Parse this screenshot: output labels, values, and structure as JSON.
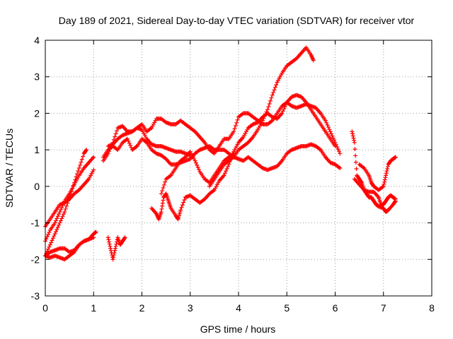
{
  "chart_data": {
    "type": "scatter",
    "title": "Day 189 of 2021, Sidereal Day-to-day VTEC variation (SDTVAR) for receiver vtor",
    "xlabel": "GPS time / hours",
    "ylabel": "SDTVAR / TECUs",
    "xlim": [
      0,
      8
    ],
    "ylim": [
      -3,
      4
    ],
    "xticks": [
      "0",
      "1",
      "2",
      "3",
      "4",
      "5",
      "6",
      "7",
      "8"
    ],
    "yticks": [
      "-3",
      "-2",
      "-1",
      "0",
      "1",
      "2",
      "3",
      "4"
    ],
    "grid": true,
    "legend": "none",
    "marker": "+",
    "color": "#ff0000",
    "series": [
      {
        "points": [
          [
            0.0,
            -1.1
          ],
          [
            0.1,
            -0.9
          ],
          [
            0.2,
            -0.7
          ],
          [
            0.3,
            -0.5
          ],
          [
            0.4,
            -0.45
          ],
          [
            0.5,
            -0.35
          ],
          [
            0.6,
            -0.2
          ],
          [
            0.7,
            -0.1
          ],
          [
            0.8,
            0.05
          ],
          [
            0.9,
            0.2
          ],
          [
            1.0,
            0.45
          ]
        ]
      },
      {
        "points": [
          [
            0.0,
            -1.9
          ],
          [
            0.1,
            -1.6
          ],
          [
            0.2,
            -1.3
          ],
          [
            0.3,
            -1.0
          ],
          [
            0.4,
            -0.7
          ],
          [
            0.5,
            -0.3
          ],
          [
            0.6,
            0.1
          ],
          [
            0.7,
            0.5
          ],
          [
            0.8,
            0.9
          ],
          [
            0.85,
            1.0
          ]
        ]
      },
      {
        "points": [
          [
            0.0,
            -1.5
          ],
          [
            0.1,
            -1.2
          ],
          [
            0.2,
            -1.0
          ],
          [
            0.3,
            -0.7
          ],
          [
            0.4,
            -0.4
          ],
          [
            0.5,
            -0.2
          ],
          [
            0.6,
            0.05
          ],
          [
            0.7,
            0.3
          ],
          [
            0.8,
            0.5
          ],
          [
            0.9,
            0.65
          ],
          [
            1.0,
            0.8
          ]
        ]
      },
      {
        "points": [
          [
            0.0,
            -1.9
          ],
          [
            0.1,
            -1.8
          ],
          [
            0.2,
            -1.75
          ],
          [
            0.3,
            -1.7
          ],
          [
            0.4,
            -1.7
          ],
          [
            0.5,
            -1.8
          ],
          [
            0.6,
            -1.75
          ],
          [
            0.7,
            -1.6
          ],
          [
            0.8,
            -1.5
          ],
          [
            0.9,
            -1.45
          ],
          [
            1.0,
            -1.3
          ],
          [
            1.05,
            -1.25
          ]
        ]
      },
      {
        "points": [
          [
            0.0,
            -1.9
          ],
          [
            0.1,
            -1.95
          ],
          [
            0.2,
            -1.9
          ],
          [
            0.3,
            -1.95
          ],
          [
            0.4,
            -2.0
          ],
          [
            0.5,
            -1.9
          ],
          [
            0.6,
            -1.8
          ],
          [
            0.7,
            -1.6
          ],
          [
            0.8,
            -1.5
          ],
          [
            0.9,
            -1.45
          ],
          [
            1.0,
            -1.4
          ]
        ]
      },
      {
        "points": [
          [
            1.2,
            0.7
          ],
          [
            1.3,
            0.9
          ],
          [
            1.4,
            1.2
          ],
          [
            1.5,
            1.6
          ],
          [
            1.6,
            1.65
          ],
          [
            1.7,
            1.5
          ],
          [
            1.8,
            1.5
          ],
          [
            1.9,
            1.6
          ],
          [
            2.0,
            1.7
          ],
          [
            2.1,
            1.5
          ],
          [
            2.2,
            1.6
          ],
          [
            2.3,
            1.85
          ],
          [
            2.4,
            1.85
          ],
          [
            2.5,
            1.75
          ],
          [
            2.6,
            1.7
          ],
          [
            2.7,
            1.7
          ],
          [
            2.8,
            1.8
          ],
          [
            2.9,
            1.7
          ],
          [
            3.0,
            1.6
          ],
          [
            3.1,
            1.5
          ],
          [
            3.2,
            1.35
          ],
          [
            3.3,
            1.2
          ],
          [
            3.4,
            1.0
          ],
          [
            3.5,
            0.9
          ],
          [
            3.6,
            1.1
          ],
          [
            3.7,
            1.3
          ],
          [
            3.8,
            1.3
          ],
          [
            3.9,
            1.5
          ],
          [
            4.0,
            1.9
          ],
          [
            4.1,
            2.0
          ],
          [
            4.2,
            2.0
          ],
          [
            4.3,
            1.9
          ],
          [
            4.4,
            1.8
          ],
          [
            4.5,
            1.7
          ],
          [
            4.6,
            1.7
          ],
          [
            4.7,
            1.8
          ],
          [
            4.8,
            2.0
          ],
          [
            4.9,
            2.2
          ],
          [
            5.0,
            2.3
          ],
          [
            5.1,
            2.2
          ],
          [
            5.2,
            2.15
          ],
          [
            5.3,
            2.2
          ],
          [
            5.4,
            2.25
          ],
          [
            5.5,
            2.2
          ],
          [
            5.6,
            2.15
          ],
          [
            5.7,
            2.0
          ],
          [
            5.8,
            1.8
          ],
          [
            5.9,
            1.5
          ],
          [
            6.0,
            1.2
          ],
          [
            6.1,
            0.9
          ]
        ]
      },
      {
        "points": [
          [
            1.2,
            0.8
          ],
          [
            1.3,
            1.0
          ],
          [
            1.4,
            1.1
          ],
          [
            1.5,
            1.0
          ],
          [
            1.6,
            1.2
          ],
          [
            1.7,
            1.3
          ],
          [
            1.8,
            1.0
          ],
          [
            1.9,
            1.1
          ],
          [
            2.0,
            1.3
          ],
          [
            2.1,
            1.2
          ],
          [
            2.2,
            1.0
          ],
          [
            2.3,
            0.9
          ],
          [
            2.4,
            0.85
          ],
          [
            2.5,
            0.75
          ],
          [
            2.6,
            0.6
          ],
          [
            2.7,
            0.6
          ],
          [
            2.8,
            0.65
          ],
          [
            2.9,
            0.7
          ],
          [
            3.0,
            0.75
          ],
          [
            3.1,
            0.9
          ],
          [
            3.2,
            1.0
          ],
          [
            3.3,
            1.05
          ],
          [
            3.4,
            1.1
          ],
          [
            3.5,
            1.0
          ],
          [
            3.6,
            1.0
          ],
          [
            3.7,
            1.0
          ],
          [
            3.8,
            0.9
          ],
          [
            3.9,
            0.8
          ],
          [
            4.0,
            0.75
          ],
          [
            4.1,
            0.7
          ],
          [
            4.2,
            0.8
          ],
          [
            4.3,
            0.7
          ],
          [
            4.4,
            0.6
          ],
          [
            4.5,
            0.5
          ],
          [
            4.6,
            0.45
          ],
          [
            4.7,
            0.5
          ],
          [
            4.8,
            0.55
          ],
          [
            4.9,
            0.7
          ],
          [
            5.0,
            0.9
          ],
          [
            5.1,
            1.0
          ],
          [
            5.2,
            1.05
          ],
          [
            5.3,
            1.1
          ],
          [
            5.4,
            1.1
          ],
          [
            5.5,
            1.15
          ],
          [
            5.6,
            1.1
          ],
          [
            5.7,
            1.0
          ],
          [
            5.8,
            0.8
          ],
          [
            5.9,
            0.65
          ],
          [
            6.0,
            0.6
          ],
          [
            6.1,
            0.5
          ]
        ]
      },
      {
        "points": [
          [
            1.3,
            1.1
          ],
          [
            1.4,
            1.15
          ],
          [
            1.5,
            1.3
          ],
          [
            1.6,
            1.4
          ],
          [
            1.7,
            1.45
          ],
          [
            1.8,
            1.5
          ],
          [
            1.9,
            1.6
          ],
          [
            2.0,
            1.55
          ],
          [
            2.1,
            1.3
          ],
          [
            2.2,
            1.15
          ],
          [
            2.3,
            1.1
          ],
          [
            2.4,
            1.1
          ],
          [
            2.5,
            1.05
          ],
          [
            2.6,
            1.0
          ],
          [
            2.7,
            0.95
          ],
          [
            2.8,
            0.95
          ],
          [
            2.9,
            0.9
          ],
          [
            3.0,
            0.85
          ]
        ]
      },
      {
        "points": [
          [
            2.2,
            -0.6
          ],
          [
            2.3,
            -0.75
          ],
          [
            2.35,
            -0.9
          ],
          [
            2.4,
            -0.7
          ],
          [
            2.45,
            -0.3
          ],
          [
            2.5,
            -0.2
          ],
          [
            2.55,
            -0.4
          ],
          [
            2.6,
            -0.6
          ],
          [
            2.7,
            -0.8
          ],
          [
            2.75,
            -0.9
          ],
          [
            2.8,
            -0.65
          ],
          [
            2.9,
            -0.3
          ],
          [
            3.0,
            -0.25
          ],
          [
            3.1,
            -0.35
          ],
          [
            3.2,
            -0.45
          ],
          [
            3.3,
            -0.35
          ],
          [
            3.4,
            -0.2
          ],
          [
            3.5,
            -0.1
          ],
          [
            3.6,
            0.15
          ],
          [
            3.7,
            0.3
          ],
          [
            3.8,
            0.6
          ],
          [
            3.9,
            0.95
          ],
          [
            4.0,
            1.2
          ],
          [
            4.1,
            1.35
          ],
          [
            4.2,
            1.6
          ],
          [
            4.3,
            1.7
          ],
          [
            4.4,
            1.75
          ],
          [
            4.5,
            1.9
          ],
          [
            4.6,
            2.0
          ],
          [
            4.7,
            1.9
          ],
          [
            4.8,
            1.85
          ],
          [
            4.9,
            2.0
          ],
          [
            5.0,
            2.3
          ],
          [
            5.1,
            2.45
          ],
          [
            5.2,
            2.5
          ],
          [
            5.3,
            2.45
          ],
          [
            5.4,
            2.3
          ],
          [
            5.5,
            2.1
          ],
          [
            5.6,
            1.9
          ],
          [
            5.7,
            1.7
          ],
          [
            5.8,
            1.5
          ],
          [
            5.9,
            1.3
          ],
          [
            6.0,
            1.1
          ]
        ]
      },
      {
        "points": [
          [
            3.4,
            0.0
          ],
          [
            3.5,
            0.2
          ],
          [
            3.6,
            0.4
          ],
          [
            3.7,
            0.6
          ],
          [
            3.8,
            0.7
          ],
          [
            3.9,
            0.8
          ],
          [
            4.0,
            1.0
          ],
          [
            4.1,
            1.1
          ],
          [
            4.2,
            1.2
          ],
          [
            4.3,
            1.35
          ],
          [
            4.4,
            1.55
          ],
          [
            4.5,
            1.8
          ],
          [
            4.6,
            2.1
          ],
          [
            4.7,
            2.5
          ],
          [
            4.8,
            2.85
          ],
          [
            4.9,
            3.1
          ],
          [
            5.0,
            3.3
          ],
          [
            5.1,
            3.4
          ],
          [
            5.2,
            3.5
          ],
          [
            5.3,
            3.65
          ],
          [
            5.4,
            3.8
          ],
          [
            5.5,
            3.6
          ],
          [
            5.55,
            3.45
          ]
        ]
      },
      {
        "points": [
          [
            1.3,
            -1.4
          ],
          [
            1.35,
            -1.7
          ],
          [
            1.4,
            -2.0
          ],
          [
            1.45,
            -1.7
          ],
          [
            1.5,
            -1.4
          ],
          [
            1.55,
            -1.6
          ],
          [
            1.6,
            -1.5
          ],
          [
            1.65,
            -1.4
          ]
        ]
      },
      {
        "points": [
          [
            2.4,
            -0.2
          ],
          [
            2.5,
            0.2
          ],
          [
            2.6,
            0.3
          ],
          [
            2.7,
            0.5
          ],
          [
            2.8,
            0.7
          ],
          [
            2.9,
            0.8
          ],
          [
            3.0,
            0.95
          ],
          [
            3.1,
            0.7
          ],
          [
            3.2,
            0.4
          ],
          [
            3.3,
            0.2
          ],
          [
            3.4,
            0.1
          ],
          [
            3.5,
            0.3
          ],
          [
            3.6,
            0.5
          ],
          [
            3.7,
            0.7
          ],
          [
            3.8,
            0.8
          ],
          [
            3.9,
            0.9
          ]
        ]
      },
      {
        "points": [
          [
            6.35,
            1.5
          ],
          [
            6.4,
            1.2
          ],
          [
            6.45,
            0.3
          ],
          [
            6.5,
            0.2
          ],
          [
            6.55,
            0.1
          ],
          [
            6.6,
            -0.1
          ],
          [
            6.65,
            -0.2
          ],
          [
            6.7,
            -0.3
          ],
          [
            6.75,
            -0.3
          ],
          [
            6.8,
            -0.4
          ],
          [
            6.85,
            -0.5
          ],
          [
            6.9,
            -0.55
          ],
          [
            7.0,
            -0.6
          ],
          [
            7.05,
            -0.7
          ],
          [
            7.1,
            -0.65
          ],
          [
            7.2,
            -0.5
          ],
          [
            7.25,
            -0.4
          ]
        ]
      },
      {
        "points": [
          [
            6.5,
            0.6
          ],
          [
            6.6,
            0.5
          ],
          [
            6.7,
            0.3
          ],
          [
            6.75,
            0.1
          ],
          [
            6.8,
            0.0
          ],
          [
            6.9,
            -0.1
          ],
          [
            7.0,
            0.0
          ],
          [
            7.05,
            0.3
          ],
          [
            7.1,
            0.6
          ],
          [
            7.15,
            0.7
          ],
          [
            7.2,
            0.75
          ],
          [
            7.25,
            0.8
          ]
        ]
      },
      {
        "points": [
          [
            6.4,
            0.2
          ],
          [
            6.5,
            0.05
          ],
          [
            6.6,
            -0.1
          ],
          [
            6.7,
            -0.15
          ],
          [
            6.8,
            -0.15
          ],
          [
            6.9,
            -0.3
          ],
          [
            6.95,
            -0.5
          ],
          [
            7.0,
            -0.5
          ],
          [
            7.05,
            -0.4
          ],
          [
            7.1,
            -0.3
          ],
          [
            7.15,
            -0.25
          ],
          [
            7.2,
            -0.3
          ],
          [
            7.25,
            -0.35
          ]
        ]
      }
    ]
  }
}
